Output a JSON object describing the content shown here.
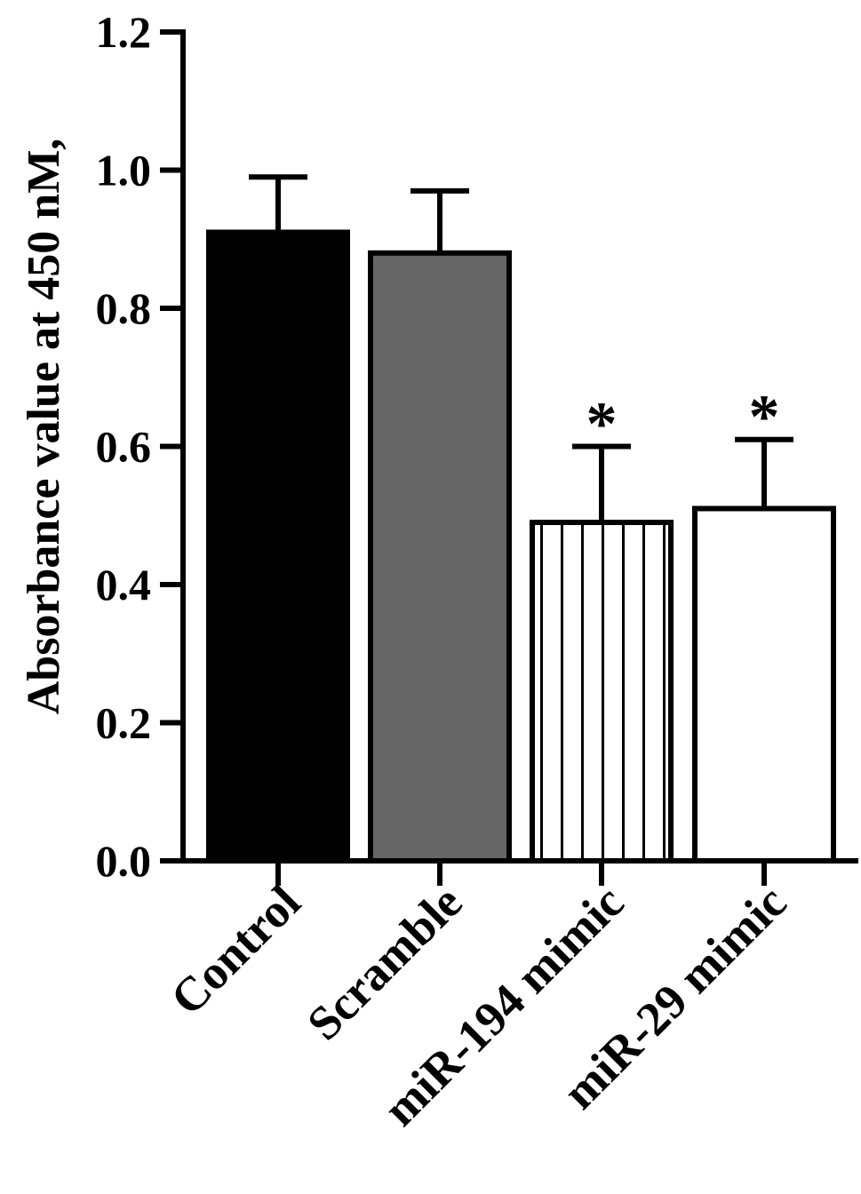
{
  "chart_data": {
    "type": "bar",
    "title": "",
    "ylabel": "Absorbance value at 450 nM,",
    "xlabel": "",
    "ylim": [
      0,
      1.2
    ],
    "yticks": [
      "0.0",
      "0.2",
      "0.4",
      "0.6",
      "0.8",
      "1.0",
      "1.2"
    ],
    "categories": [
      "Control",
      "Scramble",
      "miR-194 mimic",
      "miR-29 mimic"
    ],
    "values": [
      0.91,
      0.88,
      0.49,
      0.51
    ],
    "errors": [
      0.08,
      0.09,
      0.11,
      0.1
    ],
    "annotations": [
      "",
      "",
      "*",
      "*"
    ],
    "fills": [
      "#000000",
      "#666666",
      "hatch-vertical",
      "#ffffff"
    ],
    "grid": false,
    "legend": "none"
  }
}
